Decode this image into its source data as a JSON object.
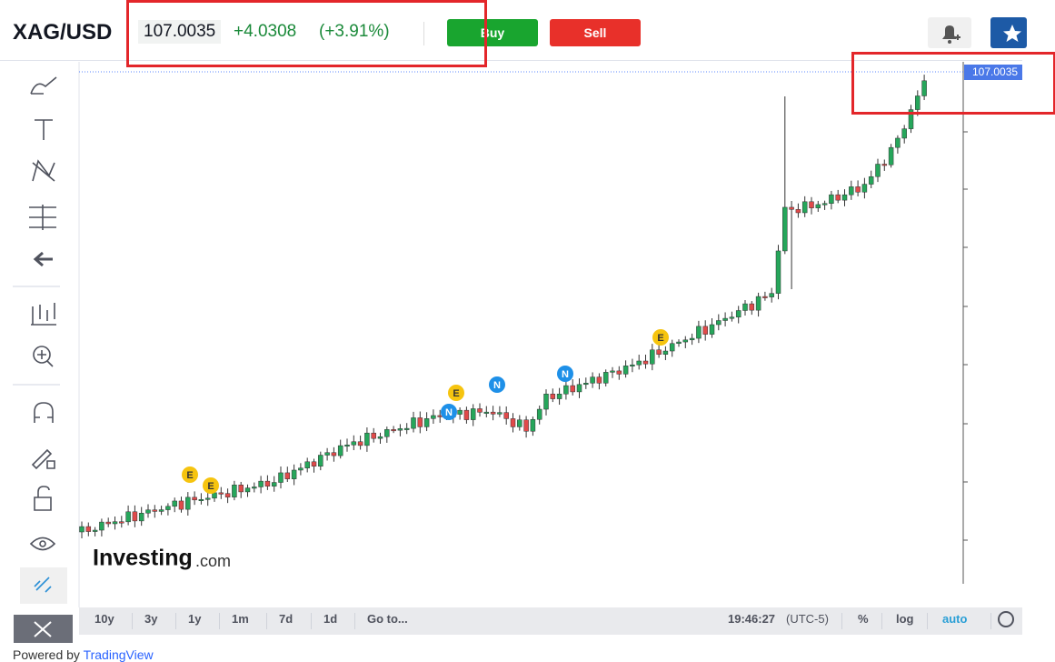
{
  "header": {
    "symbol": "XAG/USD",
    "price": "107.0035",
    "change": "+4.0308",
    "change_pct": "(+3.91%)",
    "buy": "Buy",
    "sell": "Sell"
  },
  "chart": {
    "price_label": "107.0035",
    "watermark": "Investing",
    "watermark_suffix": ".com",
    "event_markers": [
      "E",
      "E",
      "N",
      "E",
      "N",
      "N",
      "E"
    ]
  },
  "toolbar": {
    "ranges": [
      "10y",
      "3y",
      "1y",
      "1m",
      "7d",
      "1d",
      "Go to..."
    ],
    "time": "19:46:27",
    "timezone": "(UTC-5)",
    "options": [
      "%",
      "log",
      "auto"
    ]
  },
  "footer": {
    "prefix": "Powered by",
    "link": "TradingView"
  }
}
